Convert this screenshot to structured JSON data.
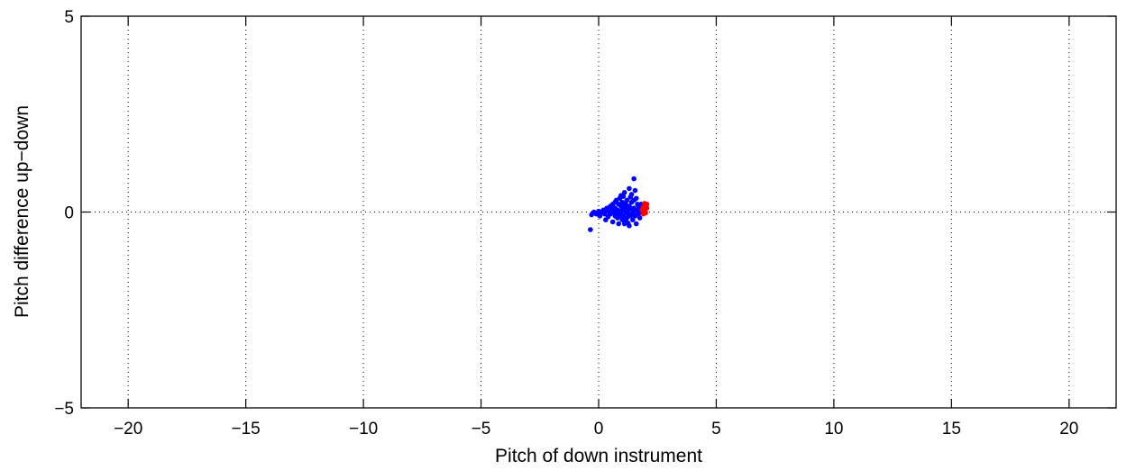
{
  "chart_data": {
    "type": "scatter",
    "title": "",
    "xlabel": "Pitch of down instrument",
    "ylabel": "Pitch difference up−down",
    "xlim": [
      -22,
      22
    ],
    "ylim": [
      -5,
      5
    ],
    "xticks": [
      -20,
      -15,
      -10,
      -5,
      0,
      5,
      10,
      15,
      20
    ],
    "xtick_labels": [
      "−20",
      "−15",
      "−10",
      "−5",
      "0",
      "5",
      "10",
      "15",
      "20"
    ],
    "yticks": [
      -5,
      0,
      5
    ],
    "ytick_labels": [
      "−5",
      "0",
      "5"
    ],
    "grid": true,
    "series": [
      {
        "color": "#0000ff",
        "points": [
          [
            -0.35,
            -0.45
          ],
          [
            -0.3,
            -0.07
          ],
          [
            -0.2,
            0.0
          ],
          [
            -0.1,
            -0.05
          ],
          [
            0.0,
            0.02
          ],
          [
            0.05,
            -0.1
          ],
          [
            0.1,
            0.0
          ],
          [
            0.2,
            0.05
          ],
          [
            0.25,
            -0.05
          ],
          [
            0.3,
            0.03
          ],
          [
            0.3,
            -0.2
          ],
          [
            0.35,
            0.1
          ],
          [
            0.4,
            -0.12
          ],
          [
            0.45,
            0.0
          ],
          [
            0.5,
            0.15
          ],
          [
            0.5,
            -0.05
          ],
          [
            0.55,
            0.05
          ],
          [
            0.6,
            -0.25
          ],
          [
            0.6,
            0.2
          ],
          [
            0.65,
            0.0
          ],
          [
            0.7,
            0.1
          ],
          [
            0.7,
            -0.1
          ],
          [
            0.75,
            0.3
          ],
          [
            0.8,
            -0.15
          ],
          [
            0.8,
            0.05
          ],
          [
            0.85,
            0.2
          ],
          [
            0.85,
            -0.3
          ],
          [
            0.9,
            0.0
          ],
          [
            0.9,
            0.35
          ],
          [
            0.95,
            -0.05
          ],
          [
            0.95,
            0.15
          ],
          [
            1.0,
            0.25
          ],
          [
            1.0,
            -0.2
          ],
          [
            1.0,
            0.05
          ],
          [
            1.05,
            0.4
          ],
          [
            1.05,
            -0.1
          ],
          [
            1.1,
            0.1
          ],
          [
            1.1,
            0.5
          ],
          [
            1.1,
            -0.3
          ],
          [
            1.15,
            0.0
          ],
          [
            1.15,
            0.2
          ],
          [
            1.2,
            -0.15
          ],
          [
            1.2,
            0.3
          ],
          [
            1.25,
            0.05
          ],
          [
            1.25,
            -0.05
          ],
          [
            1.3,
            0.6
          ],
          [
            1.3,
            0.15
          ],
          [
            1.3,
            -0.35
          ],
          [
            1.35,
            0.1
          ],
          [
            1.35,
            -0.1
          ],
          [
            1.4,
            0.45
          ],
          [
            1.4,
            0.25
          ],
          [
            1.45,
            0.0
          ],
          [
            1.45,
            -0.2
          ],
          [
            1.5,
            0.85
          ],
          [
            1.5,
            0.3
          ],
          [
            1.5,
            0.1
          ],
          [
            1.55,
            -0.1
          ],
          [
            1.55,
            0.55
          ],
          [
            1.6,
            0.05
          ],
          [
            1.6,
            -0.3
          ],
          [
            1.65,
            0.2
          ],
          [
            1.65,
            0.0
          ],
          [
            1.7,
            -0.05
          ],
          [
            1.7,
            0.15
          ],
          [
            1.75,
            0.1
          ],
          [
            1.75,
            -0.15
          ],
          [
            1.8,
            0.05
          ],
          [
            1.8,
            0.2
          ],
          [
            1.85,
            0.0
          ],
          [
            1.85,
            0.15
          ],
          [
            1.9,
            0.1
          ],
          [
            0.9,
            -0.1
          ],
          [
            1.0,
            0.15
          ],
          [
            1.2,
            0.1
          ],
          [
            1.4,
            -0.05
          ],
          [
            0.6,
            0.08
          ],
          [
            0.75,
            -0.02
          ],
          [
            1.15,
            -0.22
          ],
          [
            1.35,
            0.38
          ],
          [
            1.6,
            0.35
          ],
          [
            0.95,
            0.42
          ],
          [
            1.25,
            -0.28
          ],
          [
            0.7,
            0.25
          ]
        ]
      },
      {
        "color": "#ff0000",
        "points": [
          [
            1.85,
            0.05
          ],
          [
            1.9,
            0.12
          ],
          [
            1.95,
            0.0
          ],
          [
            2.0,
            0.18
          ],
          [
            2.0,
            0.08
          ],
          [
            1.95,
            0.22
          ],
          [
            2.05,
            0.1
          ],
          [
            1.9,
            -0.05
          ],
          [
            2.0,
            -0.02
          ],
          [
            2.05,
            0.2
          ]
        ]
      }
    ]
  }
}
